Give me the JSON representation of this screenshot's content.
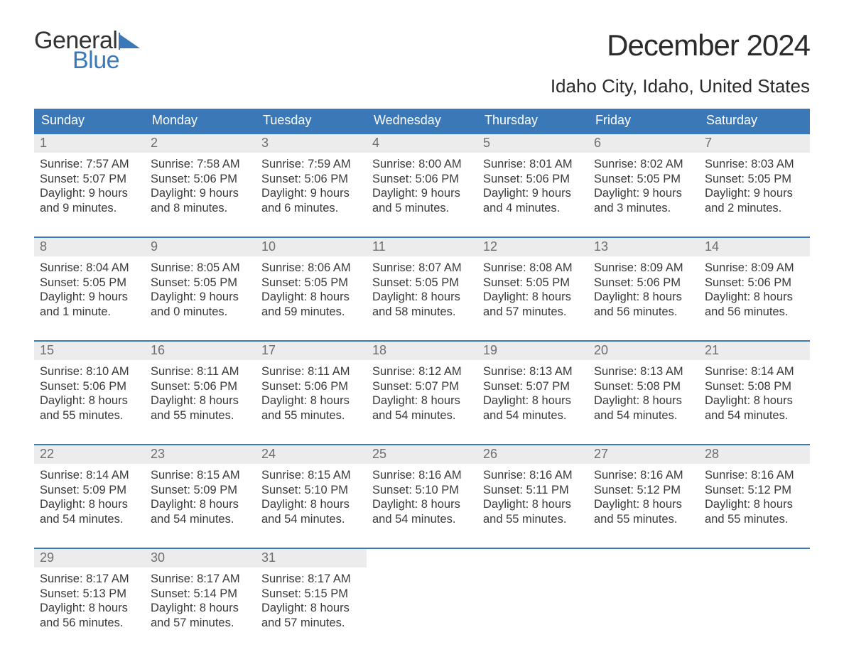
{
  "brand": {
    "name_part1": "General",
    "name_part2": "Blue",
    "text_color": "#333333",
    "accent_color": "#3b78b8"
  },
  "title": {
    "month": "December 2024",
    "location": "Idaho City, Idaho, United States",
    "month_fontsize": 42,
    "location_fontsize": 26
  },
  "calendar": {
    "header_bg": "#3b78b8",
    "header_text_color": "#ffffff",
    "daynum_bg": "#ececec",
    "daynum_color": "#6e6e6e",
    "body_text_color": "#3a3a3a",
    "week_border_color": "#3b78b8",
    "columns": [
      "Sunday",
      "Monday",
      "Tuesday",
      "Wednesday",
      "Thursday",
      "Friday",
      "Saturday"
    ],
    "weeks": [
      [
        {
          "n": "1",
          "sunrise": "7:57 AM",
          "sunset": "5:07 PM",
          "dl1": "9 hours",
          "dl2": "and 9 minutes."
        },
        {
          "n": "2",
          "sunrise": "7:58 AM",
          "sunset": "5:06 PM",
          "dl1": "9 hours",
          "dl2": "and 8 minutes."
        },
        {
          "n": "3",
          "sunrise": "7:59 AM",
          "sunset": "5:06 PM",
          "dl1": "9 hours",
          "dl2": "and 6 minutes."
        },
        {
          "n": "4",
          "sunrise": "8:00 AM",
          "sunset": "5:06 PM",
          "dl1": "9 hours",
          "dl2": "and 5 minutes."
        },
        {
          "n": "5",
          "sunrise": "8:01 AM",
          "sunset": "5:06 PM",
          "dl1": "9 hours",
          "dl2": "and 4 minutes."
        },
        {
          "n": "6",
          "sunrise": "8:02 AM",
          "sunset": "5:05 PM",
          "dl1": "9 hours",
          "dl2": "and 3 minutes."
        },
        {
          "n": "7",
          "sunrise": "8:03 AM",
          "sunset": "5:05 PM",
          "dl1": "9 hours",
          "dl2": "and 2 minutes."
        }
      ],
      [
        {
          "n": "8",
          "sunrise": "8:04 AM",
          "sunset": "5:05 PM",
          "dl1": "9 hours",
          "dl2": "and 1 minute."
        },
        {
          "n": "9",
          "sunrise": "8:05 AM",
          "sunset": "5:05 PM",
          "dl1": "9 hours",
          "dl2": "and 0 minutes."
        },
        {
          "n": "10",
          "sunrise": "8:06 AM",
          "sunset": "5:05 PM",
          "dl1": "8 hours",
          "dl2": "and 59 minutes."
        },
        {
          "n": "11",
          "sunrise": "8:07 AM",
          "sunset": "5:05 PM",
          "dl1": "8 hours",
          "dl2": "and 58 minutes."
        },
        {
          "n": "12",
          "sunrise": "8:08 AM",
          "sunset": "5:05 PM",
          "dl1": "8 hours",
          "dl2": "and 57 minutes."
        },
        {
          "n": "13",
          "sunrise": "8:09 AM",
          "sunset": "5:06 PM",
          "dl1": "8 hours",
          "dl2": "and 56 minutes."
        },
        {
          "n": "14",
          "sunrise": "8:09 AM",
          "sunset": "5:06 PM",
          "dl1": "8 hours",
          "dl2": "and 56 minutes."
        }
      ],
      [
        {
          "n": "15",
          "sunrise": "8:10 AM",
          "sunset": "5:06 PM",
          "dl1": "8 hours",
          "dl2": "and 55 minutes."
        },
        {
          "n": "16",
          "sunrise": "8:11 AM",
          "sunset": "5:06 PM",
          "dl1": "8 hours",
          "dl2": "and 55 minutes."
        },
        {
          "n": "17",
          "sunrise": "8:11 AM",
          "sunset": "5:06 PM",
          "dl1": "8 hours",
          "dl2": "and 55 minutes."
        },
        {
          "n": "18",
          "sunrise": "8:12 AM",
          "sunset": "5:07 PM",
          "dl1": "8 hours",
          "dl2": "and 54 minutes."
        },
        {
          "n": "19",
          "sunrise": "8:13 AM",
          "sunset": "5:07 PM",
          "dl1": "8 hours",
          "dl2": "and 54 minutes."
        },
        {
          "n": "20",
          "sunrise": "8:13 AM",
          "sunset": "5:08 PM",
          "dl1": "8 hours",
          "dl2": "and 54 minutes."
        },
        {
          "n": "21",
          "sunrise": "8:14 AM",
          "sunset": "5:08 PM",
          "dl1": "8 hours",
          "dl2": "and 54 minutes."
        }
      ],
      [
        {
          "n": "22",
          "sunrise": "8:14 AM",
          "sunset": "5:09 PM",
          "dl1": "8 hours",
          "dl2": "and 54 minutes."
        },
        {
          "n": "23",
          "sunrise": "8:15 AM",
          "sunset": "5:09 PM",
          "dl1": "8 hours",
          "dl2": "and 54 minutes."
        },
        {
          "n": "24",
          "sunrise": "8:15 AM",
          "sunset": "5:10 PM",
          "dl1": "8 hours",
          "dl2": "and 54 minutes."
        },
        {
          "n": "25",
          "sunrise": "8:16 AM",
          "sunset": "5:10 PM",
          "dl1": "8 hours",
          "dl2": "and 54 minutes."
        },
        {
          "n": "26",
          "sunrise": "8:16 AM",
          "sunset": "5:11 PM",
          "dl1": "8 hours",
          "dl2": "and 55 minutes."
        },
        {
          "n": "27",
          "sunrise": "8:16 AM",
          "sunset": "5:12 PM",
          "dl1": "8 hours",
          "dl2": "and 55 minutes."
        },
        {
          "n": "28",
          "sunrise": "8:16 AM",
          "sunset": "5:12 PM",
          "dl1": "8 hours",
          "dl2": "and 55 minutes."
        }
      ],
      [
        {
          "n": "29",
          "sunrise": "8:17 AM",
          "sunset": "5:13 PM",
          "dl1": "8 hours",
          "dl2": "and 56 minutes."
        },
        {
          "n": "30",
          "sunrise": "8:17 AM",
          "sunset": "5:14 PM",
          "dl1": "8 hours",
          "dl2": "and 57 minutes."
        },
        {
          "n": "31",
          "sunrise": "8:17 AM",
          "sunset": "5:15 PM",
          "dl1": "8 hours",
          "dl2": "and 57 minutes."
        },
        {
          "empty": true
        },
        {
          "empty": true
        },
        {
          "empty": true
        },
        {
          "empty": true
        }
      ]
    ],
    "labels": {
      "sunrise": "Sunrise:",
      "sunset": "Sunset:",
      "daylight": "Daylight:"
    }
  }
}
